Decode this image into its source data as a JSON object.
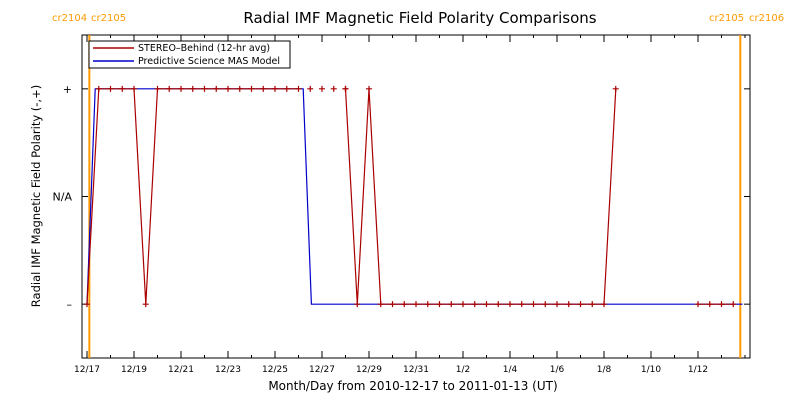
{
  "chart_data": {
    "type": "line",
    "title": "Radial IMF Magnetic Field Polarity Comparisons",
    "xlabel": "Month/Day from 2010-12-17 to 2011-01-13 (UT)",
    "ylabel": "Radial IMF Magnetic Field Polarity (-,+)",
    "xlim": [
      0,
      28
    ],
    "ylim": [
      -1.5,
      1.5
    ],
    "x_ticks": [
      {
        "x": 0,
        "label": "12/17"
      },
      {
        "x": 2,
        "label": "12/19"
      },
      {
        "x": 4,
        "label": "12/21"
      },
      {
        "x": 6,
        "label": "12/23"
      },
      {
        "x": 8,
        "label": "12/25"
      },
      {
        "x": 10,
        "label": "12/27"
      },
      {
        "x": 12,
        "label": "12/29"
      },
      {
        "x": 14,
        "label": "12/31"
      },
      {
        "x": 16,
        "label": "1/2"
      },
      {
        "x": 18,
        "label": "1/4"
      },
      {
        "x": 20,
        "label": "1/6"
      },
      {
        "x": 22,
        "label": "1/8"
      },
      {
        "x": 24,
        "label": "1/10"
      },
      {
        "x": 26,
        "label": "1/12"
      }
    ],
    "y_ticks": [
      {
        "y": 1,
        "label": "+"
      },
      {
        "y": 0,
        "label": "N/A"
      },
      {
        "y": -1,
        "label": "–"
      }
    ],
    "carrington_markers": [
      {
        "x": 0.1,
        "label_left": "cr2104",
        "label_right": "cr2105",
        "color": "#ff9900"
      },
      {
        "x": 27.8,
        "label_left": "cr2105",
        "label_right": "cr2106",
        "color": "#ff9900"
      }
    ],
    "legend": {
      "placement": "top-left",
      "entries": [
        {
          "name": "STEREO–Behind (12-hr avg)",
          "color": "#aa0000"
        },
        {
          "name": "Predictive Science MAS Model",
          "color": "#0000cc"
        }
      ]
    },
    "series": [
      {
        "name": "STEREO–Behind (12-hr avg)",
        "color": "#aa0000",
        "marker": "+",
        "points": [
          [
            0.0,
            -1
          ],
          [
            0.5,
            1
          ],
          [
            1.0,
            1
          ],
          [
            1.5,
            1
          ],
          [
            2.0,
            1
          ],
          [
            2.5,
            -1
          ],
          [
            3.0,
            1
          ],
          [
            3.5,
            1
          ],
          [
            4.0,
            1
          ],
          [
            4.5,
            1
          ],
          [
            5.0,
            1
          ],
          [
            5.5,
            1
          ],
          [
            6.0,
            1
          ],
          [
            6.5,
            1
          ],
          [
            7.0,
            1
          ],
          [
            7.5,
            1
          ],
          [
            8.0,
            1
          ],
          [
            8.5,
            1
          ],
          [
            9.0,
            1
          ]
        ],
        "isolated_points": [
          [
            9.5,
            1
          ],
          [
            10.0,
            1
          ],
          [
            10.5,
            1
          ],
          [
            11.0,
            1
          ]
        ],
        "points2": [
          [
            11.0,
            1
          ],
          [
            11.5,
            -1
          ],
          [
            12.0,
            1
          ],
          [
            12.5,
            -1
          ],
          [
            13.0,
            -1
          ],
          [
            13.5,
            -1
          ],
          [
            14.0,
            -1
          ],
          [
            14.5,
            -1
          ],
          [
            15.0,
            -1
          ],
          [
            15.5,
            -1
          ],
          [
            16.0,
            -1
          ],
          [
            16.5,
            -1
          ],
          [
            17.0,
            -1
          ],
          [
            17.5,
            -1
          ],
          [
            18.0,
            -1
          ],
          [
            18.5,
            -1
          ],
          [
            19.0,
            -1
          ],
          [
            19.5,
            -1
          ],
          [
            20.0,
            -1
          ],
          [
            20.5,
            -1
          ],
          [
            21.0,
            -1
          ],
          [
            21.5,
            -1
          ],
          [
            22.0,
            -1
          ],
          [
            22.5,
            1
          ]
        ],
        "tail_points": [
          [
            26.0,
            -1
          ],
          [
            26.5,
            -1
          ],
          [
            27.0,
            -1
          ],
          [
            27.5,
            -1
          ]
        ]
      },
      {
        "name": "Predictive Science MAS Model",
        "color": "#0000cc",
        "points": [
          [
            0.0,
            -1
          ],
          [
            0.35,
            1
          ],
          [
            9.2,
            1
          ],
          [
            9.55,
            -1
          ],
          [
            27.9,
            -1
          ]
        ]
      }
    ]
  }
}
